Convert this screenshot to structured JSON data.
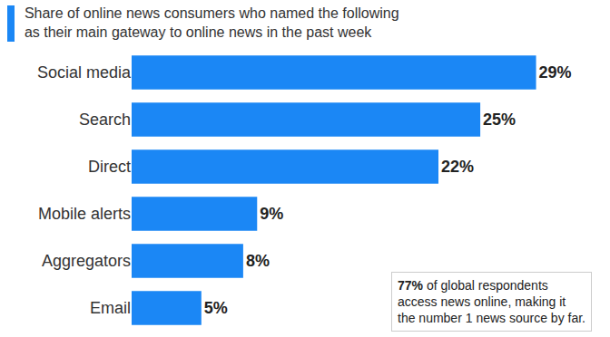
{
  "chart_data": {
    "type": "bar",
    "orientation": "horizontal",
    "title": "Share of online news consumers who named the following as their main gateway to online news in the past week",
    "categories": [
      "Social media",
      "Search",
      "Direct",
      "Mobile alerts",
      "Aggregators",
      "Email"
    ],
    "values": [
      29,
      25,
      22,
      9,
      8,
      5
    ],
    "value_labels": [
      "29%",
      "25%",
      "22%",
      "9%",
      "8%",
      "5%"
    ],
    "color": "#1b87f5",
    "xlim": [
      0,
      33
    ],
    "data_labels": true,
    "tick_labels": "y",
    "grid": false,
    "annotations": [
      {
        "text": [
          "77% of global respondents",
          "access news online, making it",
          "the number 1 news source by far."
        ]
      }
    ]
  }
}
